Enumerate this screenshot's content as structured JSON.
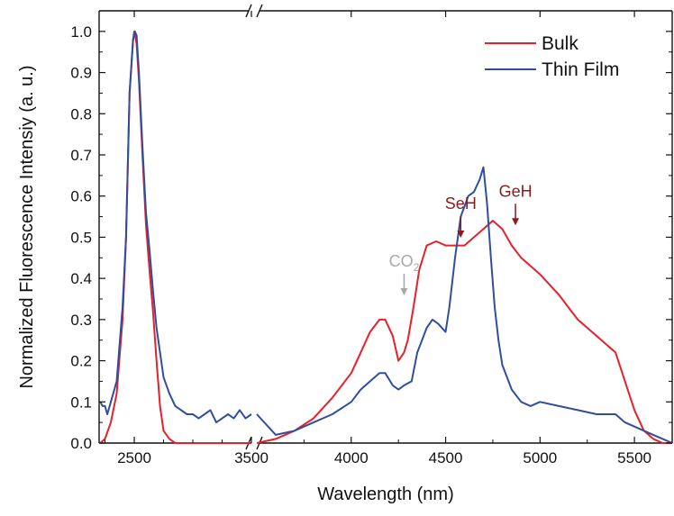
{
  "chart_data": {
    "type": "line",
    "xlabel": "Wavelength (nm)",
    "ylabel": "Normalized Fluorescence Intensiy (a. u.)",
    "ylim": [
      0,
      1.05
    ],
    "axis_break": {
      "left_segment_xlim": [
        2200,
        3500
      ],
      "right_segment_xlim": [
        3500,
        5700
      ]
    },
    "x_ticks_left": [
      "2500",
      "3500"
    ],
    "x_ticks_right": [
      "3500",
      "4000",
      "4500",
      "5000",
      "5500"
    ],
    "y_ticks": [
      "0.0",
      "0.1",
      "0.2",
      "0.3",
      "0.4",
      "0.5",
      "0.6",
      "0.7",
      "0.8",
      "0.9",
      "1.0"
    ],
    "legend_position": "top-right",
    "colors": {
      "bulk": "#e8202a",
      "thin_film": "#2f4e9e",
      "seh_geh": "#8b1a1a",
      "co2": "#a8a8a8"
    },
    "series": [
      {
        "name": "Bulk",
        "color": "#e8202a",
        "x": [
          2210,
          2250,
          2300,
          2350,
          2400,
          2430,
          2460,
          2490,
          2500,
          2520,
          2540,
          2570,
          2600,
          2630,
          2660,
          2690,
          2720,
          2750,
          2800,
          2850,
          2900,
          3000,
          3100,
          3200,
          3300,
          3400,
          3500,
          3600,
          3700,
          3800,
          3900,
          4000,
          4050,
          4100,
          4150,
          4180,
          4220,
          4250,
          4280,
          4300,
          4330,
          4360,
          4400,
          4450,
          4500,
          4550,
          4600,
          4650,
          4700,
          4750,
          4800,
          4850,
          4900,
          5000,
          5100,
          5200,
          5300,
          5400,
          5450,
          5500,
          5550,
          5600,
          5650,
          5700
        ],
        "y": [
          0.0,
          0.01,
          0.05,
          0.12,
          0.3,
          0.5,
          0.85,
          0.98,
          1.0,
          0.97,
          0.88,
          0.7,
          0.53,
          0.42,
          0.32,
          0.2,
          0.09,
          0.03,
          0.01,
          0.0,
          0.0,
          0.0,
          0.0,
          0.0,
          0.0,
          0.0,
          0.0,
          0.01,
          0.03,
          0.06,
          0.11,
          0.17,
          0.22,
          0.27,
          0.3,
          0.3,
          0.26,
          0.2,
          0.22,
          0.25,
          0.33,
          0.42,
          0.48,
          0.49,
          0.48,
          0.48,
          0.48,
          0.5,
          0.52,
          0.54,
          0.52,
          0.48,
          0.45,
          0.41,
          0.36,
          0.3,
          0.26,
          0.22,
          0.15,
          0.08,
          0.03,
          0.01,
          0.0,
          0.0
        ]
      },
      {
        "name": "Thin Film",
        "color": "#2f4e9e",
        "x": [
          2210,
          2230,
          2250,
          2270,
          2300,
          2350,
          2400,
          2430,
          2460,
          2490,
          2505,
          2520,
          2540,
          2570,
          2600,
          2630,
          2660,
          2690,
          2720,
          2750,
          2800,
          2850,
          2900,
          2950,
          3000,
          3050,
          3100,
          3150,
          3200,
          3250,
          3300,
          3350,
          3400,
          3450,
          3500,
          3600,
          3700,
          3800,
          3900,
          4000,
          4050,
          4100,
          4150,
          4180,
          4220,
          4250,
          4280,
          4320,
          4350,
          4400,
          4430,
          4460,
          4500,
          4520,
          4550,
          4580,
          4620,
          4650,
          4680,
          4700,
          4720,
          4740,
          4760,
          4780,
          4800,
          4850,
          4900,
          4950,
          5000,
          5100,
          5200,
          5300,
          5350,
          5400,
          5450,
          5500,
          5550,
          5600,
          5650,
          5700
        ],
        "y": [
          0.1,
          0.09,
          0.09,
          0.07,
          0.1,
          0.15,
          0.33,
          0.5,
          0.85,
          0.98,
          1.0,
          0.99,
          0.9,
          0.72,
          0.56,
          0.47,
          0.37,
          0.28,
          0.22,
          0.16,
          0.12,
          0.09,
          0.08,
          0.07,
          0.07,
          0.06,
          0.07,
          0.08,
          0.05,
          0.06,
          0.07,
          0.06,
          0.08,
          0.06,
          0.07,
          0.02,
          0.03,
          0.05,
          0.07,
          0.1,
          0.13,
          0.15,
          0.17,
          0.17,
          0.14,
          0.13,
          0.14,
          0.15,
          0.22,
          0.28,
          0.3,
          0.29,
          0.27,
          0.33,
          0.45,
          0.55,
          0.6,
          0.61,
          0.64,
          0.67,
          0.58,
          0.45,
          0.33,
          0.25,
          0.19,
          0.13,
          0.1,
          0.09,
          0.1,
          0.09,
          0.08,
          0.07,
          0.07,
          0.07,
          0.05,
          0.04,
          0.03,
          0.02,
          0.01,
          0.0
        ]
      }
    ],
    "annotations": [
      {
        "label": "SeH",
        "x": 4580,
        "arrow_to_y": 0.49,
        "color": "#8b1a1a"
      },
      {
        "label": "GeH",
        "x": 4870,
        "arrow_to_y": 0.52,
        "color": "#8b1a1a"
      },
      {
        "label": "CO",
        "subscript": "2",
        "x": 4280,
        "arrow_to_y": 0.35,
        "color": "#a8a8a8"
      }
    ]
  }
}
